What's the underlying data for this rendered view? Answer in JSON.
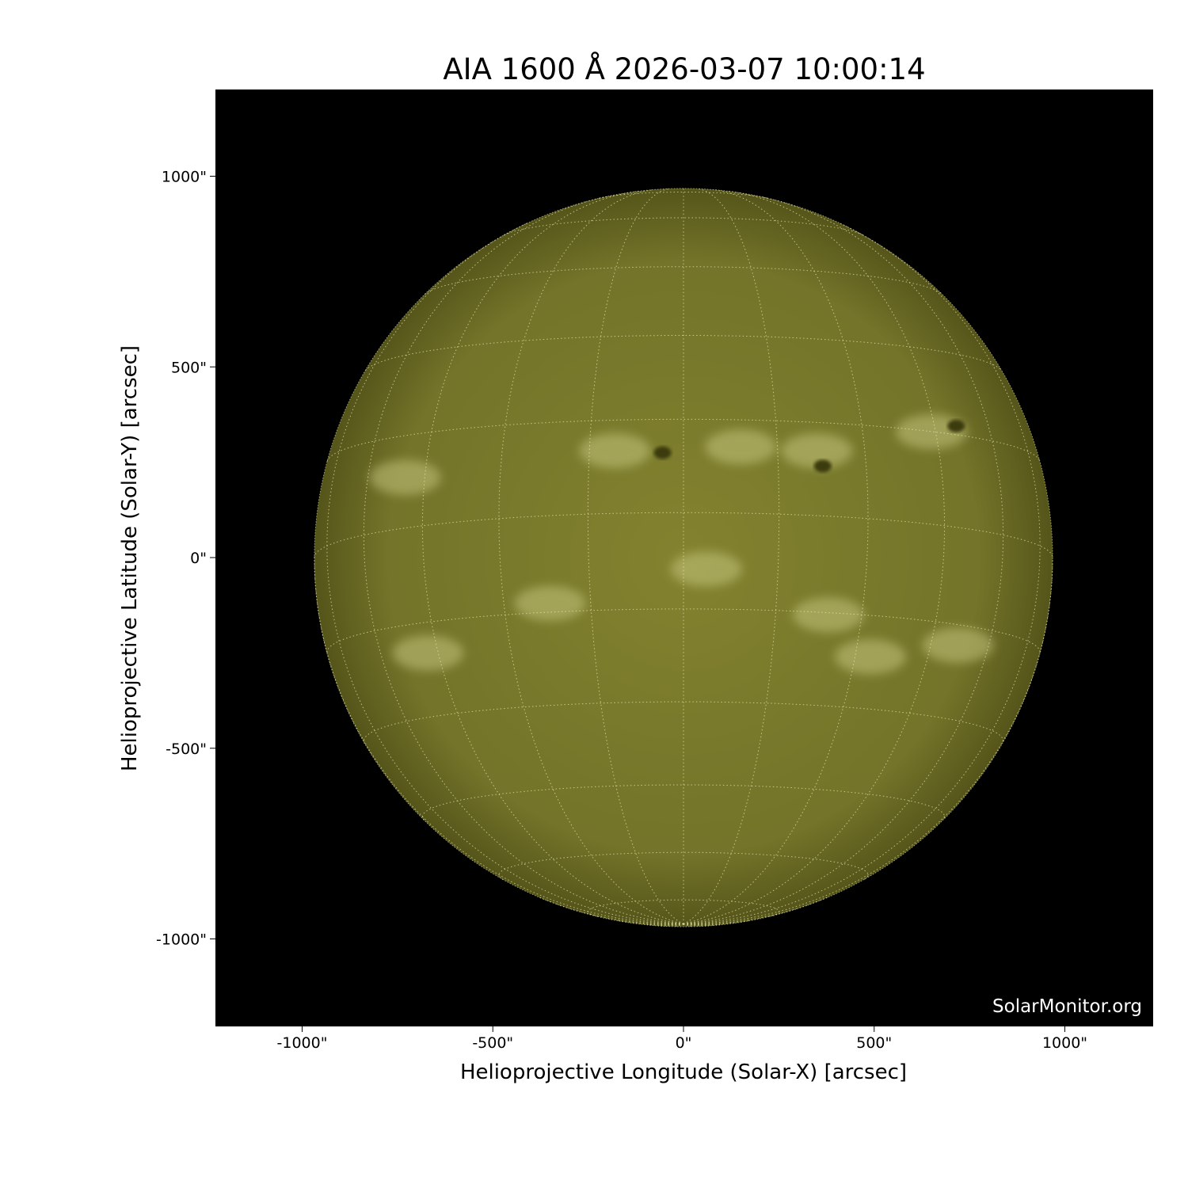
{
  "title": "AIA 1600 Å 2026-03-07 10:00:14",
  "credit": "SolarMonitor.org",
  "x_axis": {
    "label": "Helioprojective Longitude (Solar-X) [arcsec]",
    "ticks": [
      -1000,
      -500,
      0,
      500,
      1000
    ],
    "tick_labels": [
      "-1000\"",
      "-500\"",
      "0\"",
      "500\"",
      "1000\""
    ],
    "range": [
      -1230,
      1230
    ]
  },
  "y_axis": {
    "label": "Helioprojective Latitude (Solar-Y) [arcsec]",
    "ticks": [
      1000,
      500,
      0,
      -500,
      -1000
    ],
    "tick_labels": [
      "1000\"",
      "500\"",
      "0\"",
      "-500\"",
      "-1000\""
    ],
    "range": [
      -1230,
      1230
    ]
  },
  "sun": {
    "radius_arcsec": 968,
    "grid_spacing_deg": 15,
    "colors": {
      "disk": "#7b7b2c",
      "limb": "#5a5a18",
      "plage": "#d6d690",
      "spot": "#3a3a0e",
      "background": "#000000",
      "grid": "#e8e8b0"
    },
    "sunspots_arcsec": [
      [
        -55,
        275
      ],
      [
        365,
        240
      ],
      [
        715,
        345
      ]
    ],
    "plage_regions_arcsec": [
      [
        -180,
        280
      ],
      [
        150,
        290
      ],
      [
        350,
        280
      ],
      [
        650,
        330
      ],
      [
        -730,
        210
      ],
      [
        60,
        -30
      ],
      [
        380,
        -150
      ],
      [
        490,
        -260
      ],
      [
        720,
        -230
      ],
      [
        -670,
        -250
      ],
      [
        -350,
        -120
      ]
    ]
  }
}
